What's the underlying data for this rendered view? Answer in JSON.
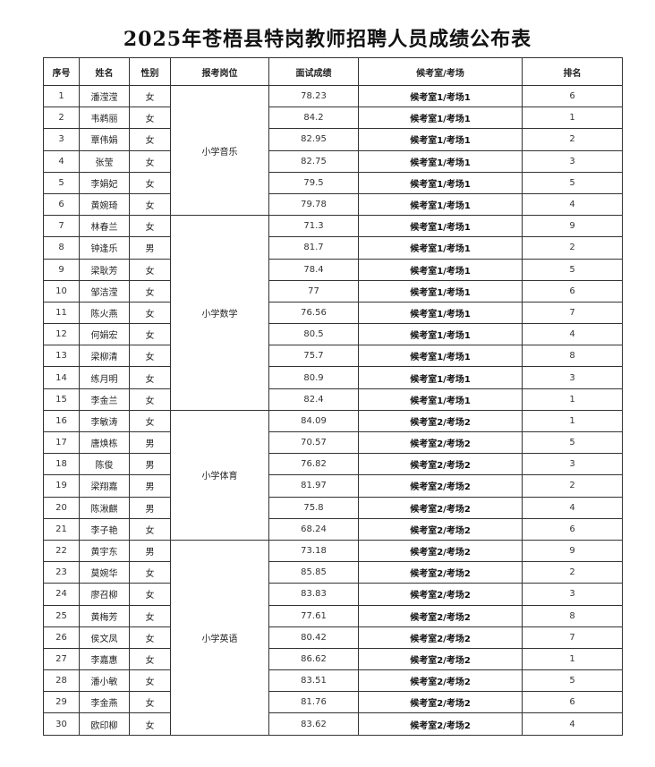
{
  "title": "2025年苍梧县特岗教师招聘人员成绩公布表",
  "headers": [
    "序号",
    "姓名",
    "性别",
    "报考岗位",
    "面试成绩",
    "候考室/考场",
    "排名"
  ],
  "rows": [
    {
      "no": "1",
      "name": "潘滢滢",
      "gender": "女",
      "position": "小学音乐",
      "score": "78.23",
      "room": "候考室1/考场1",
      "rank": "6"
    },
    {
      "no": "2",
      "name": "韦鹈丽",
      "gender": "女",
      "position": "小学音乐",
      "score": "84.2",
      "room": "候考室1/考场1",
      "rank": "1"
    },
    {
      "no": "3",
      "name": "覃伟娟",
      "gender": "女",
      "position": "小学音乐",
      "score": "82.95",
      "room": "候考室1/考场1",
      "rank": "2"
    },
    {
      "no": "4",
      "name": "张莹",
      "gender": "女",
      "position": "小学音乐",
      "score": "82.75",
      "room": "候考室1/考场1",
      "rank": "3"
    },
    {
      "no": "5",
      "name": "李娟妃",
      "gender": "女",
      "position": "小学音乐",
      "score": "79.5",
      "room": "候考室1/考场1",
      "rank": "5"
    },
    {
      "no": "6",
      "name": "黄婉琦",
      "gender": "女",
      "position": "小学音乐",
      "score": "79.78",
      "room": "候考室1/考场1",
      "rank": "4"
    },
    {
      "no": "7",
      "name": "林春兰",
      "gender": "女",
      "position": "小学数学",
      "score": "71.3",
      "room": "候考室1/考场1",
      "rank": "9"
    },
    {
      "no": "8",
      "name": "钟逢乐",
      "gender": "男",
      "position": "小学数学",
      "score": "81.7",
      "room": "候考室1/考场1",
      "rank": "2"
    },
    {
      "no": "9",
      "name": "梁耿芳",
      "gender": "女",
      "position": "小学数学",
      "score": "78.4",
      "room": "候考室1/考场1",
      "rank": "5"
    },
    {
      "no": "10",
      "name": "邹洁滢",
      "gender": "女",
      "position": "小学数学",
      "score": "77",
      "room": "候考室1/考场1",
      "rank": "6"
    },
    {
      "no": "11",
      "name": "陈火燕",
      "gender": "女",
      "position": "小学数学",
      "score": "76.56",
      "room": "候考室1/考场1",
      "rank": "7"
    },
    {
      "no": "12",
      "name": "何娟宏",
      "gender": "女",
      "position": "小学数学",
      "score": "80.5",
      "room": "候考室1/考场1",
      "rank": "4"
    },
    {
      "no": "13",
      "name": "梁柳清",
      "gender": "女",
      "position": "小学数学",
      "score": "75.7",
      "room": "候考室1/考场1",
      "rank": "8"
    },
    {
      "no": "14",
      "name": "练月明",
      "gender": "女",
      "position": "小学数学",
      "score": "80.9",
      "room": "候考室1/考场1",
      "rank": "3"
    },
    {
      "no": "15",
      "name": "李金兰",
      "gender": "女",
      "position": "小学数学",
      "score": "82.4",
      "room": "候考室1/考场1",
      "rank": "1"
    },
    {
      "no": "16",
      "name": "李敏涛",
      "gender": "女",
      "position": "小学体育",
      "score": "84.09",
      "room": "候考室2/考场2",
      "rank": "1"
    },
    {
      "no": "17",
      "name": "唐焕栋",
      "gender": "男",
      "position": "小学体育",
      "score": "70.57",
      "room": "候考室2/考场2",
      "rank": "5"
    },
    {
      "no": "18",
      "name": "陈俊",
      "gender": "男",
      "position": "小学体育",
      "score": "76.82",
      "room": "候考室2/考场2",
      "rank": "3"
    },
    {
      "no": "19",
      "name": "梁翔嘉",
      "gender": "男",
      "position": "小学体育",
      "score": "81.97",
      "room": "候考室2/考场2",
      "rank": "2"
    },
    {
      "no": "20",
      "name": "陈湫麒",
      "gender": "男",
      "position": "小学体育",
      "score": "75.8",
      "room": "候考室2/考场2",
      "rank": "4"
    },
    {
      "no": "21",
      "name": "李子艳",
      "gender": "女",
      "position": "小学体育",
      "score": "68.24",
      "room": "候考室2/考场2",
      "rank": "6"
    },
    {
      "no": "22",
      "name": "黄宇东",
      "gender": "男",
      "position": "小学英语",
      "score": "73.18",
      "room": "候考室2/考场2",
      "rank": "9"
    },
    {
      "no": "23",
      "name": "莫婉华",
      "gender": "女",
      "position": "小学英语",
      "score": "85.85",
      "room": "候考室2/考场2",
      "rank": "2"
    },
    {
      "no": "24",
      "name": "廖召柳",
      "gender": "女",
      "position": "小学英语",
      "score": "83.83",
      "room": "候考室2/考场2",
      "rank": "3"
    },
    {
      "no": "25",
      "name": "黄梅芳",
      "gender": "女",
      "position": "小学英语",
      "score": "77.61",
      "room": "候考室2/考场2",
      "rank": "8"
    },
    {
      "no": "26",
      "name": "侯文凤",
      "gender": "女",
      "position": "小学英语",
      "score": "80.42",
      "room": "候考室2/考场2",
      "rank": "7"
    },
    {
      "no": "27",
      "name": "李嘉惠",
      "gender": "女",
      "position": "小学英语",
      "score": "86.62",
      "room": "候考室2/考场2",
      "rank": "1"
    },
    {
      "no": "28",
      "name": "潘小敏",
      "gender": "女",
      "position": "小学英语",
      "score": "83.51",
      "room": "候考室2/考场2",
      "rank": "5"
    },
    {
      "no": "29",
      "name": "李金燕",
      "gender": "女",
      "position": "小学英语",
      "score": "81.76",
      "room": "候考室2/考场2",
      "rank": "6"
    },
    {
      "no": "30",
      "name": "欧印柳",
      "gender": "女",
      "position": "小学英语",
      "score": "83.62",
      "room": "候考室2/考场2",
      "rank": "4"
    }
  ]
}
